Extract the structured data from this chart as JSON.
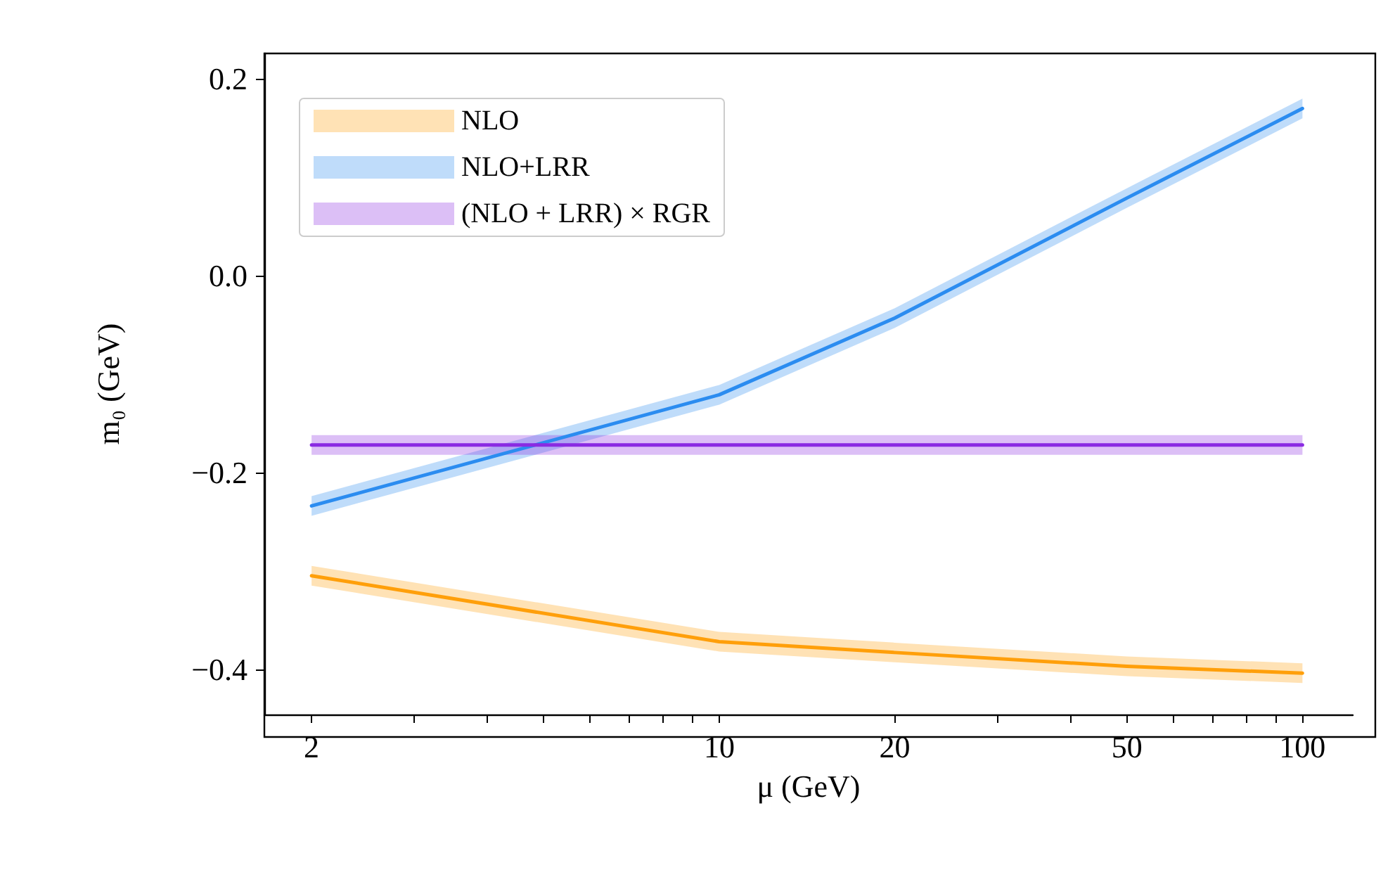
{
  "chart_data": {
    "type": "line",
    "xlabel": "μ (GeV)",
    "ylabel": "m₀ (GeV)",
    "x": [
      2,
      10,
      20,
      50,
      100
    ],
    "series": [
      {
        "name": "NLO",
        "color": "#ff9f0a",
        "values": [
          -0.305,
          -0.372,
          -0.383,
          -0.397,
          -0.404
        ],
        "lower": [
          -0.315,
          -0.382,
          -0.393,
          -0.407,
          -0.414
        ],
        "upper": [
          -0.295,
          -0.362,
          -0.373,
          -0.387,
          -0.394
        ]
      },
      {
        "name": "NLO+LRR",
        "color": "#2b8cf0",
        "values": [
          -0.234,
          -0.121,
          -0.043,
          0.079,
          0.17
        ],
        "lower": [
          -0.244,
          -0.131,
          -0.053,
          0.069,
          0.16
        ],
        "upper": [
          -0.224,
          -0.111,
          -0.033,
          0.089,
          0.18
        ]
      },
      {
        "name": "(NLO + LRR) × RGR",
        "color": "#8a2be2",
        "values": [
          -0.172,
          -0.172,
          -0.172,
          -0.172,
          -0.172
        ],
        "lower": [
          -0.182,
          -0.182,
          -0.182,
          -0.182,
          -0.182
        ],
        "upper": [
          -0.162,
          -0.162,
          -0.162,
          -0.162,
          -0.162
        ]
      }
    ],
    "log": "x",
    "xlim": [
      1.66,
      122
    ],
    "ylim": [
      -0.446,
      0.226
    ],
    "xticks": [
      2,
      {
        "value": 3,
        "label": null
      },
      {
        "value": 4,
        "label": null
      },
      {
        "value": 5,
        "label": null
      },
      {
        "value": 6,
        "label": null
      },
      {
        "value": 7,
        "label": null
      },
      {
        "value": 8,
        "label": null
      },
      {
        "value": 9,
        "label": null
      },
      10,
      20,
      {
        "value": 30,
        "label": null
      },
      {
        "value": 40,
        "label": null
      },
      50,
      {
        "value": 60,
        "label": null
      },
      {
        "value": 70,
        "label": null
      },
      {
        "value": 80,
        "label": null
      },
      {
        "value": 90,
        "label": null
      },
      100
    ],
    "yticks": [
      {
        "value": -0.4,
        "label": "−0.4"
      },
      {
        "value": -0.2,
        "label": "−0.2"
      },
      {
        "value": 0,
        "label": "0.0"
      },
      0.2
    ],
    "grid": false,
    "legend": "top left",
    "marker": "none",
    "line_style": "solid"
  }
}
